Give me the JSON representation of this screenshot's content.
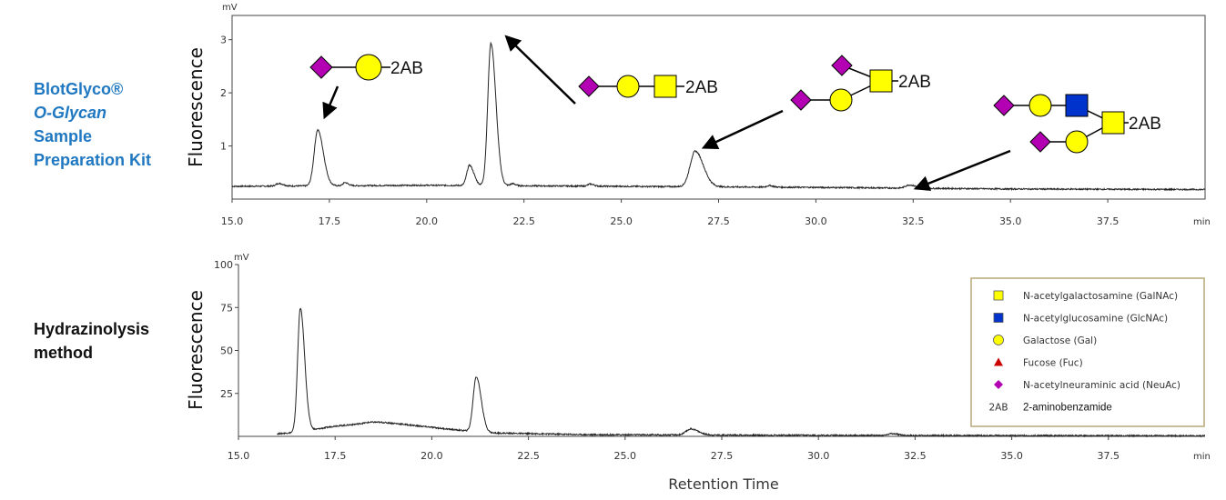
{
  "labels": {
    "panel1_line1": "BlotGlyco®",
    "panel1_line2": "O-Glycan",
    "panel1_line3": "Sample",
    "panel1_line4": "Preparation Kit",
    "panel2_line1": "Hydrazinolysis",
    "panel2_line2": "method",
    "ylabel": "Fluorescence",
    "xlabel": "Retention Time",
    "unit_y": "mV",
    "unit_x": "min",
    "tag": "2AB"
  },
  "colors": {
    "side_label_blue": "#1f78c1",
    "galnac": "#ffff00",
    "glcnac": "#0033cc",
    "gal": "#ffff00",
    "fuc": "#cc0000",
    "neuac": "#b300b3",
    "legend_border": "#b8a978"
  },
  "legend": [
    {
      "icon": "square",
      "color": "#ffff00",
      "label": "N-acetylgalactosamine (GalNAc)"
    },
    {
      "icon": "square",
      "color": "#0033cc",
      "label": "N-acetylglucosamine (GlcNAc)"
    },
    {
      "icon": "circle",
      "color": "#ffff00",
      "label": "Galactose (Gal)"
    },
    {
      "icon": "triangle",
      "color": "#cc0000",
      "label": "Fucose (Fuc)"
    },
    {
      "icon": "diamond",
      "color": "#b300b3",
      "label": "N-acetylneuraminic acid (NeuAc)"
    },
    {
      "icon": "text",
      "abbr": "2AB",
      "label": "2-aminobenzamide"
    }
  ],
  "chart_data": [
    {
      "type": "line",
      "xlim": [
        15.0,
        40.0
      ],
      "ylim": [
        0,
        3.2
      ],
      "x_ticks": [
        "15.0",
        "17.5",
        "20.0",
        "22.5",
        "25.0",
        "27.5",
        "30.0",
        "32.5",
        "35.0",
        "37.5"
      ],
      "y_ticks": [
        "1",
        "2",
        "3"
      ],
      "baseline": [
        [
          15.0,
          0.24
        ],
        [
          20.0,
          0.26
        ],
        [
          25.0,
          0.24
        ],
        [
          30.0,
          0.22
        ],
        [
          35.0,
          0.19
        ],
        [
          40.0,
          0.18
        ]
      ],
      "peaks": [
        {
          "x": 16.2,
          "h": 0.05,
          "w": 0.07
        },
        {
          "x": 17.2,
          "h": 1.05,
          "w": 0.09
        },
        {
          "x": 17.9,
          "h": 0.06,
          "w": 0.05
        },
        {
          "x": 21.1,
          "h": 0.38,
          "w": 0.07
        },
        {
          "x": 21.65,
          "h": 2.68,
          "w": 0.08
        },
        {
          "x": 22.2,
          "h": 0.04,
          "w": 0.05
        },
        {
          "x": 24.2,
          "h": 0.04,
          "w": 0.06
        },
        {
          "x": 26.9,
          "h": 0.67,
          "w": 0.13
        },
        {
          "x": 28.8,
          "h": 0.03,
          "w": 0.06
        },
        {
          "x": 32.4,
          "h": 0.06,
          "w": 0.1
        }
      ]
    },
    {
      "type": "line",
      "xlim": [
        15.0,
        40.0
      ],
      "ylim": [
        0,
        100
      ],
      "x_ticks": [
        "15.0",
        "17.5",
        "20.0",
        "22.5",
        "25.0",
        "27.5",
        "30.0",
        "32.5",
        "35.0",
        "37.5"
      ],
      "y_ticks": [
        "25",
        "50",
        "75",
        "100"
      ],
      "baseline": [
        [
          16.0,
          1.5
        ],
        [
          16.6,
          2.5
        ],
        [
          17.5,
          6.0
        ],
        [
          18.4,
          7.0
        ],
        [
          20.0,
          5.0
        ],
        [
          21.5,
          2.0
        ],
        [
          24.0,
          1.0
        ],
        [
          30.0,
          0.6
        ],
        [
          40.0,
          0.3
        ]
      ],
      "peaks": [
        {
          "x": 16.6,
          "h": 72,
          "w": 0.07
        },
        {
          "x": 18.7,
          "h": 1.5,
          "w": 0.45
        },
        {
          "x": 21.15,
          "h": 32,
          "w": 0.08
        },
        {
          "x": 26.7,
          "h": 3.5,
          "w": 0.12
        },
        {
          "x": 31.9,
          "h": 1.0,
          "w": 0.1
        }
      ]
    }
  ]
}
